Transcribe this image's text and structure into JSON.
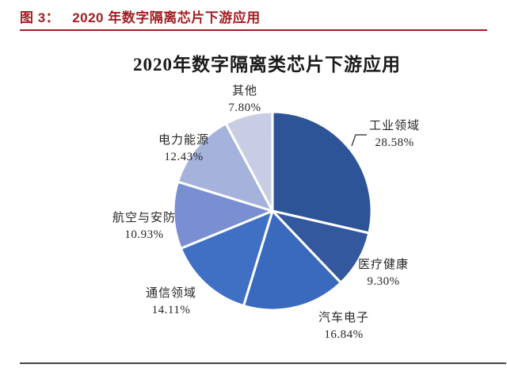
{
  "figure_header": {
    "label": "图 3：",
    "title": "2020 年数字隔离芯片下游应用"
  },
  "chart": {
    "title": "2020年数字隔离类芯片下游应用"
  },
  "chart_data": {
    "type": "pie",
    "title": "2020年数字隔离类芯片下游应用",
    "unit": "%",
    "start_angle_deg": -90,
    "direction": "clockwise",
    "legend_position": "none",
    "labels_outside": true,
    "slices": [
      {
        "label": "工业领域",
        "value": 28.58,
        "display": "28.58%",
        "color": "#2D5496"
      },
      {
        "label": "医疗健康",
        "value": 9.3,
        "display": "9.30%",
        "color": "#33589E"
      },
      {
        "label": "汽车电子",
        "value": 16.84,
        "display": "16.84%",
        "color": "#3A6ABD"
      },
      {
        "label": "通信领域",
        "value": 14.11,
        "display": "14.11%",
        "color": "#3F70C3"
      },
      {
        "label": "航空与安防",
        "value": 10.93,
        "display": "10.93%",
        "color": "#7A8FD2"
      },
      {
        "label": "电力能源",
        "value": 12.43,
        "display": "12.43%",
        "color": "#A5B3DC"
      },
      {
        "label": "其他",
        "value": 7.8,
        "display": "7.80%",
        "color": "#C8CDE4"
      }
    ]
  },
  "colors": {
    "header_red": "#A31D22",
    "divider_red": "#A31D22",
    "bottom_line": "#454545",
    "slice_border": "#FFFFFF",
    "leader_line": "#4A4A4A"
  }
}
